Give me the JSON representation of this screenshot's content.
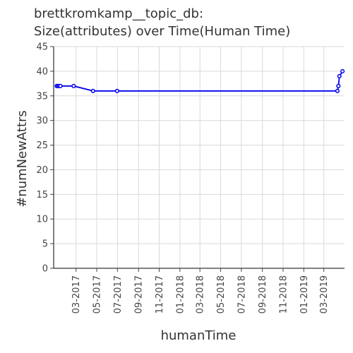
{
  "chart_data": {
    "type": "line",
    "title_lines": [
      "brettkromkamp__topic_db:",
      "Size(attributes) over Time(Human Time)"
    ],
    "xlabel": "humanTime",
    "ylabel": "#numNewAttrs",
    "ylim": [
      0,
      45
    ],
    "y_ticks": [
      0,
      5,
      10,
      15,
      20,
      25,
      30,
      35,
      40,
      45
    ],
    "x_range": [
      "2016-12-25",
      "2019-05-01"
    ],
    "x_ticks": [
      {
        "date": "2017-03-01",
        "label": "03-2017"
      },
      {
        "date": "2017-05-01",
        "label": "05-2017"
      },
      {
        "date": "2017-07-01",
        "label": "07-2017"
      },
      {
        "date": "2017-09-01",
        "label": "09-2017"
      },
      {
        "date": "2017-11-01",
        "label": "11-2017"
      },
      {
        "date": "2018-01-01",
        "label": "01-2018"
      },
      {
        "date": "2018-03-01",
        "label": "03-2018"
      },
      {
        "date": "2018-05-01",
        "label": "05-2018"
      },
      {
        "date": "2018-07-01",
        "label": "07-2018"
      },
      {
        "date": "2018-09-01",
        "label": "09-2018"
      },
      {
        "date": "2018-11-01",
        "label": "11-2018"
      },
      {
        "date": "2019-01-01",
        "label": "01-2019"
      },
      {
        "date": "2019-03-01",
        "label": "03-2019"
      }
    ],
    "grid": true,
    "series_color": "#0000ee",
    "series": [
      {
        "points": [
          {
            "x": "2017-01-03",
            "y": 37
          },
          {
            "x": "2017-01-07",
            "y": 37
          },
          {
            "x": "2017-01-10",
            "y": 37
          },
          {
            "x": "2017-01-14",
            "y": 37
          },
          {
            "x": "2017-02-22",
            "y": 37
          },
          {
            "x": "2017-04-20",
            "y": 36
          },
          {
            "x": "2017-06-30",
            "y": 36
          },
          {
            "x": "2019-04-10",
            "y": 36
          },
          {
            "x": "2019-04-13",
            "y": 37
          },
          {
            "x": "2019-04-16",
            "y": 39
          },
          {
            "x": "2019-04-25",
            "y": 40
          }
        ]
      }
    ]
  }
}
